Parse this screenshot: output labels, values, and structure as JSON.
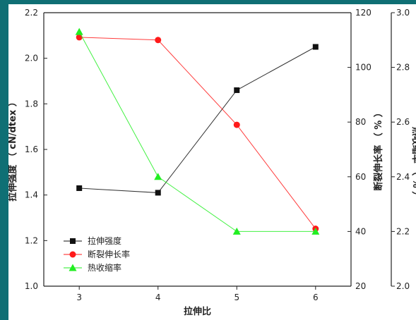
{
  "chart_data": {
    "type": "line",
    "categories": [
      "3",
      "4",
      "5",
      "6"
    ],
    "x": [
      3,
      4,
      5,
      6
    ],
    "xlabel": "拉伸比",
    "xlim": [
      2.55,
      6.45
    ],
    "axes": {
      "left": {
        "label": "拉伸强度 （ cN/dtex ）",
        "ylim": [
          1.0,
          2.2
        ],
        "ticks": [
          "1.0",
          "1.2",
          "1.4",
          "1.6",
          "1.8",
          "2.0",
          "2.2"
        ]
      },
      "right1": {
        "label": "断裂伸长率 （ % ）",
        "ylim": [
          20,
          120
        ],
        "ticks": [
          "20",
          "40",
          "60",
          "80",
          "100",
          "120"
        ]
      },
      "right2": {
        "label": "热收缩率 （ % ）",
        "ylim": [
          2.0,
          3.0
        ],
        "ticks": [
          "2.0",
          "2.2",
          "2.4",
          "2.6",
          "2.8",
          "3.0"
        ]
      }
    },
    "series": [
      {
        "name": "拉伸强度",
        "axis": "left",
        "marker": "square",
        "color": "#111111",
        "values": [
          1.43,
          1.41,
          1.86,
          2.05
        ]
      },
      {
        "name": "断裂伸长率",
        "axis": "right1",
        "marker": "circle",
        "color": "#ff1a1a",
        "values": [
          111,
          110,
          79,
          41
        ]
      },
      {
        "name": "热收缩率",
        "axis": "right2",
        "marker": "triangle",
        "color": "#22ee22",
        "values": [
          2.93,
          2.4,
          2.2,
          2.2
        ]
      }
    ],
    "legend_position": "bottom-left",
    "grid": false
  }
}
